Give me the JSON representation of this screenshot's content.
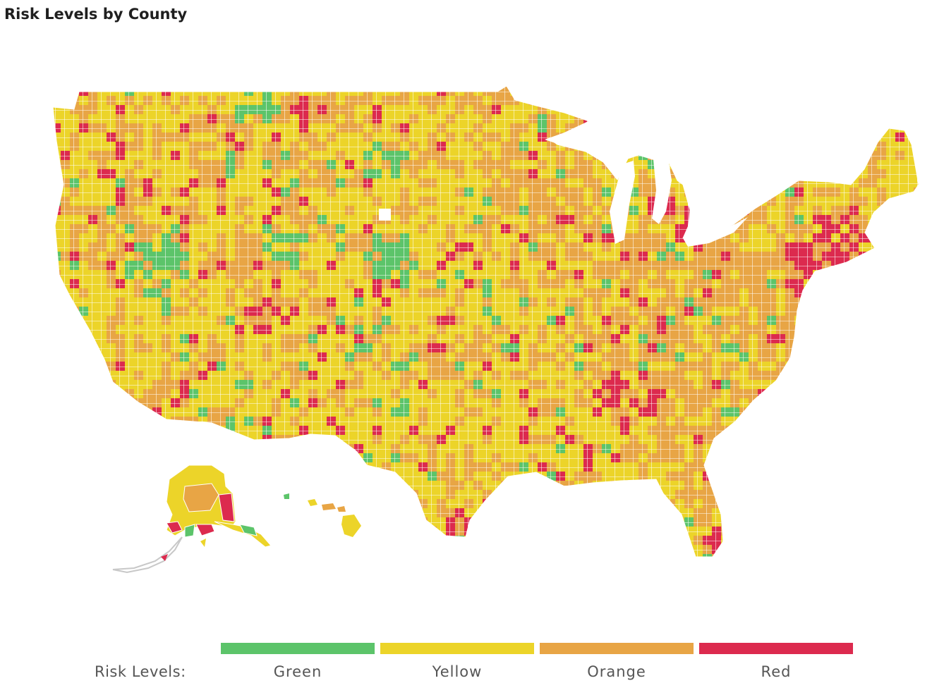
{
  "title": "Risk Levels by County",
  "legend": {
    "label": "Risk Levels:",
    "items": [
      {
        "name": "Green",
        "color": "#5cc46a"
      },
      {
        "name": "Yellow",
        "color": "#ecd429"
      },
      {
        "name": "Orange",
        "color": "#e8a545"
      },
      {
        "name": "Red",
        "color": "#dc2a4e"
      }
    ]
  },
  "colors": {
    "green": "#5cc46a",
    "yellow": "#ecd429",
    "orange": "#e8a545",
    "red": "#dc2a4e",
    "no_data": "#ffffff",
    "border": "#ffffff"
  }
}
